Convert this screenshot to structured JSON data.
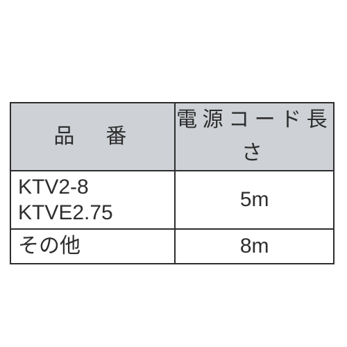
{
  "table": {
    "border_color": "#2d2d2d",
    "header_bg": "#ced1d6",
    "body_bg": "#ffffff",
    "text_color": "#2d2d2d",
    "columns": {
      "part_no": "品　番",
      "cord_len": "電源コード長さ"
    },
    "rows": [
      {
        "part_line1": "KTV2-8",
        "part_line2": "KTVE2.75",
        "len": "5m"
      },
      {
        "part_line1": "その他",
        "len": "8m"
      }
    ]
  }
}
